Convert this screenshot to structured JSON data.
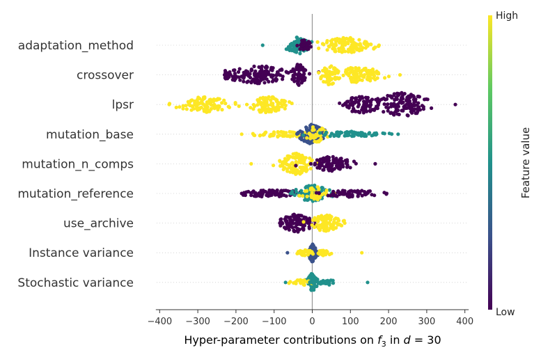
{
  "chart_data": {
    "type": "scatter",
    "subtype": "beeswarm-summary",
    "title": "",
    "xlabel_prefix": "Hyper-parameter contributions on ",
    "xlabel_f": "f",
    "xlabel_sub": "3",
    "xlabel_mid": " in ",
    "xlabel_d": "d",
    "xlabel_eq": " = 30",
    "xlim": [
      -410,
      410
    ],
    "xticks": [
      -400,
      -300,
      -200,
      -100,
      0,
      100,
      200,
      300,
      400
    ],
    "xtick_labels": [
      "−400",
      "−300",
      "−200",
      "−100",
      "0",
      "100",
      "200",
      "300",
      "400"
    ],
    "colorbar": {
      "label": "Feature value",
      "high_label": "High",
      "low_label": "Low",
      "colormap": [
        "#440154",
        "#3b528b",
        "#21918c",
        "#5ec962",
        "#fde725"
      ]
    },
    "features": [
      {
        "name": "adaptation_method",
        "clusters": [
          {
            "center": -35,
            "spread": 30,
            "width": 12,
            "color": "#21918c",
            "count": 70
          },
          {
            "center": -20,
            "spread": 20,
            "width": 8,
            "color": "#440154",
            "count": 30
          },
          {
            "center": 90,
            "spread": 60,
            "width": 11,
            "color": "#fde725",
            "count": 120
          }
        ],
        "min": -130,
        "max": 175
      },
      {
        "name": "crossover",
        "clusters": [
          {
            "center": -140,
            "spread": 75,
            "width": 13,
            "color": "#440154",
            "count": 150
          },
          {
            "center": -35,
            "spread": 15,
            "width": 16,
            "color": "#440154",
            "count": 60
          },
          {
            "center": 45,
            "spread": 25,
            "width": 14,
            "color": "#fde725",
            "count": 60
          },
          {
            "center": 120,
            "spread": 60,
            "width": 11,
            "color": "#fde725",
            "count": 110
          }
        ],
        "min": -230,
        "max": 230
      },
      {
        "name": "lpsr",
        "clusters": [
          {
            "center": -280,
            "spread": 60,
            "width": 11,
            "color": "#fde725",
            "count": 110
          },
          {
            "center": -120,
            "spread": 45,
            "width": 12,
            "color": "#fde725",
            "count": 90
          },
          {
            "center": 130,
            "spread": 50,
            "width": 12,
            "color": "#440154",
            "count": 90
          },
          {
            "center": 235,
            "spread": 60,
            "width": 17,
            "color": "#440154",
            "count": 130
          }
        ],
        "min": -375,
        "max": 375
      },
      {
        "name": "mutation_base",
        "clusters": [
          {
            "center": -70,
            "spread": 80,
            "width": 4,
            "color": "#fde725",
            "count": 70
          },
          {
            "center": 0,
            "spread": 30,
            "width": 14,
            "color": "#3b528b",
            "count": 120
          },
          {
            "center": 10,
            "spread": 25,
            "width": 12,
            "color": "#fde725",
            "count": 40
          },
          {
            "center": 100,
            "spread": 75,
            "width": 4,
            "color": "#21918c",
            "count": 70
          }
        ],
        "min": -185,
        "max": 225
      },
      {
        "name": "mutation_n_comps",
        "clusters": [
          {
            "center": -40,
            "spread": 40,
            "width": 15,
            "color": "#fde725",
            "count": 110
          },
          {
            "center": 50,
            "spread": 45,
            "width": 11,
            "color": "#440154",
            "count": 100
          }
        ],
        "min": -160,
        "max": 165
      },
      {
        "name": "mutation_reference",
        "clusters": [
          {
            "center": -100,
            "spread": 90,
            "width": 5,
            "color": "#440154",
            "count": 90
          },
          {
            "center": 0,
            "spread": 40,
            "width": 12,
            "color": "#21918c",
            "count": 100
          },
          {
            "center": 10,
            "spread": 30,
            "width": 10,
            "color": "#fde725",
            "count": 40
          },
          {
            "center": 100,
            "spread": 70,
            "width": 5,
            "color": "#440154",
            "count": 60
          }
        ],
        "min": -185,
        "max": 195
      },
      {
        "name": "use_archive",
        "clusters": [
          {
            "center": -40,
            "spread": 40,
            "width": 13,
            "color": "#440154",
            "count": 110
          },
          {
            "center": 35,
            "spread": 35,
            "width": 12,
            "color": "#fde725",
            "count": 100
          }
        ],
        "min": -85,
        "max": 85
      },
      {
        "name": "Instance variance",
        "clusters": [
          {
            "center": 0,
            "spread": 10,
            "width": 13,
            "color": "#3b528b",
            "count": 70
          },
          {
            "center": -20,
            "spread": 25,
            "width": 4,
            "color": "#fde725",
            "count": 30
          },
          {
            "center": 25,
            "spread": 25,
            "width": 4,
            "color": "#fde725",
            "count": 30
          }
        ],
        "min": -65,
        "max": 130
      },
      {
        "name": "Stochastic variance",
        "clusters": [
          {
            "center": 0,
            "spread": 10,
            "width": 13,
            "color": "#21918c",
            "count": 70
          },
          {
            "center": -25,
            "spread": 25,
            "width": 4,
            "color": "#fde725",
            "count": 30
          },
          {
            "center": 30,
            "spread": 35,
            "width": 4,
            "color": "#21918c",
            "count": 30
          }
        ],
        "min": -70,
        "max": 145
      }
    ]
  }
}
